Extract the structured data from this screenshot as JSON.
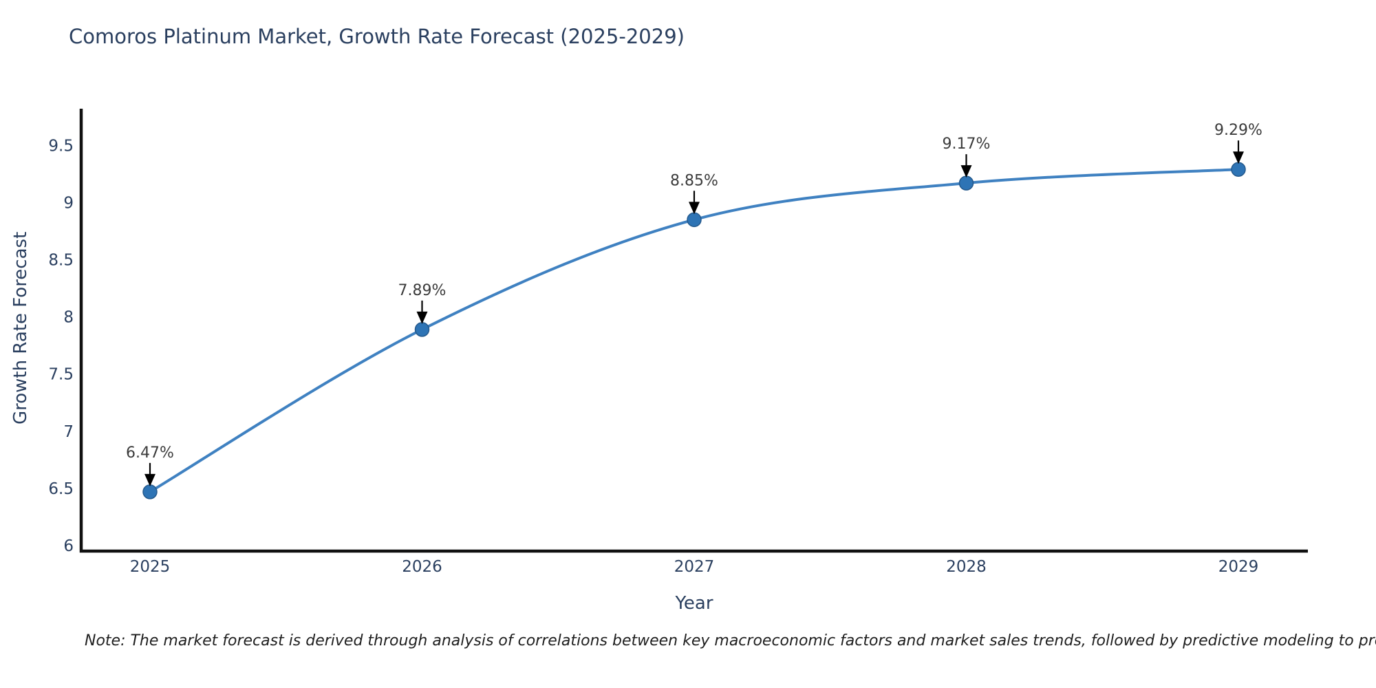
{
  "title": "Comoros Platinum Market, Growth Rate Forecast (2025-2029)",
  "note": "Note: The market forecast is derived through analysis of correlations between key macroeconomic factors and market sales trends, followed by predictive modeling to project future sales",
  "chart_data": {
    "type": "line",
    "title": "Comoros Platinum Market, Growth Rate Forecast (2025-2029)",
    "xlabel": "Year",
    "ylabel": "Growth Rate Forecast",
    "x": [
      2025,
      2026,
      2027,
      2028,
      2029
    ],
    "y": [
      6.47,
      7.89,
      8.85,
      9.17,
      9.29
    ],
    "point_labels": [
      "6.47%",
      "7.89%",
      "8.85%",
      "9.17%",
      "9.29%"
    ],
    "x_tick_labels": [
      "2025",
      "2026",
      "2027",
      "2028",
      "2029"
    ],
    "y_ticks": [
      6,
      6.5,
      7,
      7.5,
      8,
      8.5,
      9,
      9.5
    ],
    "y_tick_labels": [
      "6",
      "6.5",
      "7",
      "7.5",
      "8",
      "8.5",
      "9",
      "9.5"
    ],
    "ylim": [
      5.95,
      9.85
    ],
    "grid": false,
    "legend": "none",
    "line_shape": "spline",
    "marker_shape": "circle",
    "annotation_arrows": "down",
    "colors": {
      "line": "#3f81c1",
      "marker": "#2e74b5",
      "marker_edge": "#24598c",
      "axis": "#111111",
      "text": "#2a3f5f",
      "annotation_text": "#3c3c3c",
      "arrow": "#000000",
      "background": "#ffffff"
    }
  }
}
